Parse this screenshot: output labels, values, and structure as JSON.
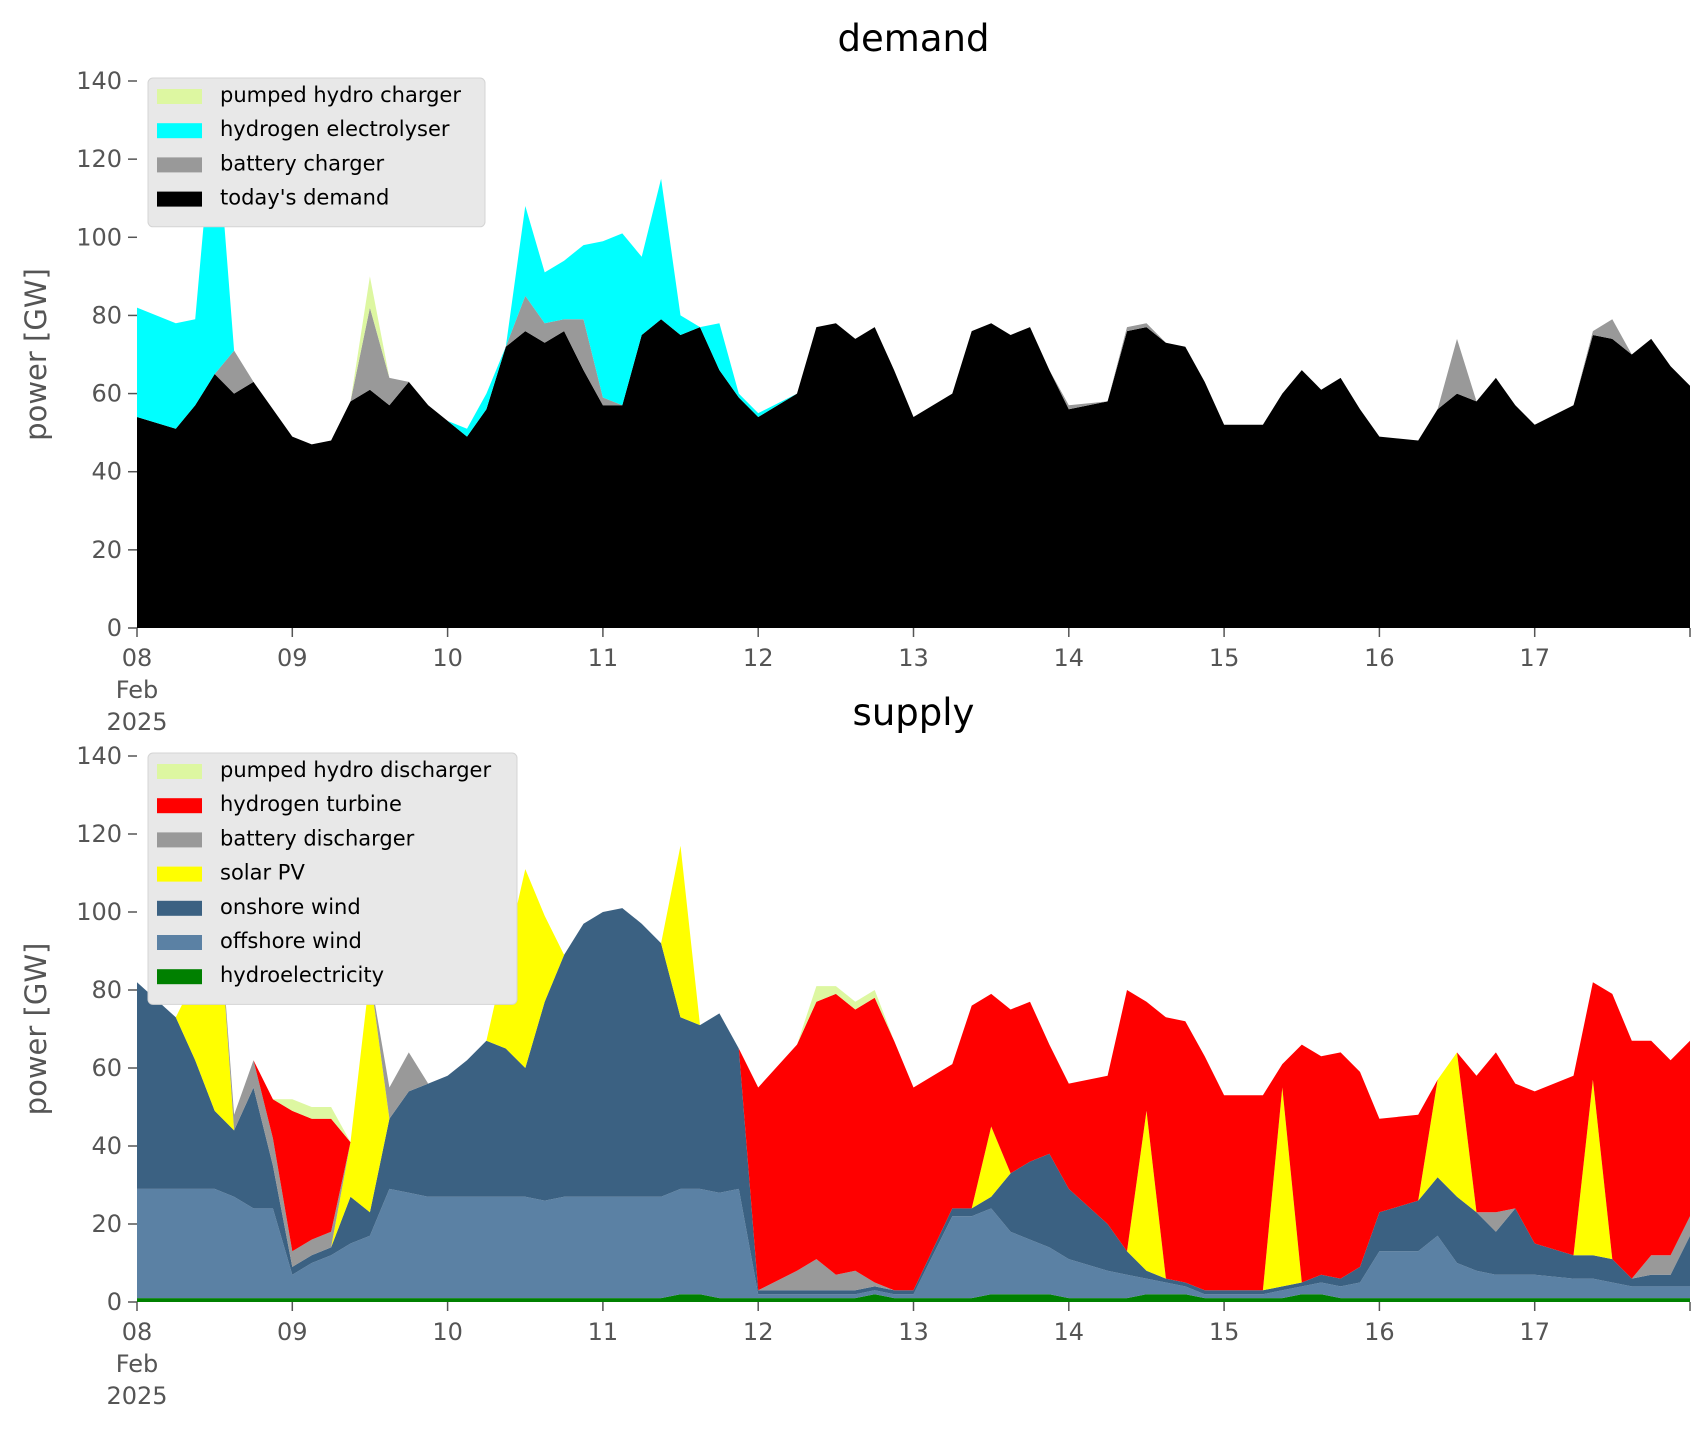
{
  "chart_data": [
    {
      "type": "area",
      "stacked": true,
      "title": "demand",
      "ylabel": "power [GW]",
      "xlabel": "",
      "xlim": [
        "2025-02-08T00:00",
        "2025-02-18T00:00"
      ],
      "ylim": [
        0,
        140
      ],
      "yticks": [
        0,
        20,
        40,
        60,
        80,
        100,
        120,
        140
      ],
      "xtick_labels": [
        "08\nFeb\n2025",
        "09",
        "10",
        "11",
        "12",
        "13",
        "14",
        "15",
        "16",
        "17"
      ],
      "grid": false,
      "legend_position": "upper-left",
      "x": [
        "2025-02-08T00:00",
        "2025-02-08T06:00",
        "2025-02-08T09:00",
        "2025-02-08T12:00",
        "2025-02-08T15:00",
        "2025-02-08T18:00",
        "2025-02-08T21:00",
        "2025-02-09T00:00",
        "2025-02-09T03:00",
        "2025-02-09T06:00",
        "2025-02-09T09:00",
        "2025-02-09T12:00",
        "2025-02-09T15:00",
        "2025-02-09T18:00",
        "2025-02-09T21:00",
        "2025-02-10T00:00",
        "2025-02-10T03:00",
        "2025-02-10T06:00",
        "2025-02-10T09:00",
        "2025-02-10T12:00",
        "2025-02-10T15:00",
        "2025-02-10T18:00",
        "2025-02-10T21:00",
        "2025-02-11T00:00",
        "2025-02-11T03:00",
        "2025-02-11T06:00",
        "2025-02-11T09:00",
        "2025-02-11T12:00",
        "2025-02-11T15:00",
        "2025-02-11T18:00",
        "2025-02-11T21:00",
        "2025-02-12T00:00",
        "2025-02-12T06:00",
        "2025-02-12T09:00",
        "2025-02-12T12:00",
        "2025-02-12T15:00",
        "2025-02-12T18:00",
        "2025-02-12T21:00",
        "2025-02-13T00:00",
        "2025-02-13T06:00",
        "2025-02-13T09:00",
        "2025-02-13T12:00",
        "2025-02-13T15:00",
        "2025-02-13T18:00",
        "2025-02-13T21:00",
        "2025-02-14T00:00",
        "2025-02-14T06:00",
        "2025-02-14T09:00",
        "2025-02-14T12:00",
        "2025-02-14T15:00",
        "2025-02-14T18:00",
        "2025-02-14T21:00",
        "2025-02-15T00:00",
        "2025-02-15T06:00",
        "2025-02-15T09:00",
        "2025-02-15T12:00",
        "2025-02-15T15:00",
        "2025-02-15T18:00",
        "2025-02-15T21:00",
        "2025-02-16T00:00",
        "2025-02-16T06:00",
        "2025-02-16T09:00",
        "2025-02-16T12:00",
        "2025-02-16T15:00",
        "2025-02-16T18:00",
        "2025-02-16T21:00",
        "2025-02-17T00:00",
        "2025-02-17T06:00",
        "2025-02-17T09:00",
        "2025-02-17T12:00",
        "2025-02-17T15:00",
        "2025-02-17T18:00",
        "2025-02-17T21:00",
        "2025-02-18T00:00"
      ],
      "series": [
        {
          "name": "today's demand",
          "color": "#000000",
          "values": [
            54,
            51,
            57,
            65,
            60,
            63,
            56,
            49,
            47,
            48,
            58,
            61,
            57,
            63,
            57,
            53,
            49,
            56,
            72,
            76,
            73,
            76,
            66,
            57,
            57,
            75,
            79,
            75,
            77,
            66,
            59,
            54,
            60,
            77,
            78,
            74,
            77,
            66,
            54,
            60,
            76,
            78,
            75,
            77,
            66,
            56,
            58,
            76,
            77,
            73,
            72,
            63,
            52,
            52,
            60,
            66,
            61,
            64,
            56,
            49,
            48,
            56,
            60,
            58,
            64,
            57,
            52,
            57,
            75,
            74,
            70,
            74,
            67,
            62
          ]
        },
        {
          "name": "battery charger",
          "color": "#999999",
          "values": [
            0,
            0,
            0,
            0,
            11,
            0,
            0,
            0,
            0,
            0,
            0,
            21,
            7,
            0,
            0,
            0,
            0,
            0,
            0,
            9,
            5,
            3,
            13,
            2,
            0,
            0,
            0,
            0,
            0,
            0,
            0,
            0,
            0,
            0,
            0,
            0,
            0,
            0,
            0,
            0,
            0,
            0,
            0,
            0,
            0,
            1,
            0,
            1,
            1,
            0,
            0,
            0,
            0,
            0,
            0,
            0,
            0,
            0,
            0,
            0,
            0,
            0,
            14,
            0,
            0,
            0,
            0,
            0,
            1,
            5,
            0,
            0,
            0,
            0
          ]
        },
        {
          "name": "hydrogen electrolyser",
          "color": "#00ffff",
          "values": [
            28,
            27,
            22,
            70,
            0,
            0,
            0,
            0,
            0,
            0,
            0,
            0,
            0,
            0,
            0,
            0,
            2,
            4,
            0,
            23,
            13,
            15,
            19,
            40,
            44,
            20,
            36,
            5,
            0,
            12,
            1,
            1,
            0,
            0,
            0,
            0,
            0,
            0,
            0,
            0,
            0,
            0,
            0,
            0,
            0,
            0,
            0,
            0,
            0,
            0,
            0,
            0,
            0,
            0,
            0,
            0,
            0,
            0,
            0,
            0,
            0,
            0,
            0,
            0,
            0,
            0,
            0,
            0,
            0,
            0,
            0,
            0,
            0,
            0
          ]
        },
        {
          "name": "pumped hydro charger",
          "color": "#ddf7a1",
          "values": [
            0,
            0,
            0,
            0,
            0,
            0,
            0,
            0,
            0,
            0,
            0,
            8,
            0,
            0,
            0,
            0,
            0,
            0,
            0,
            0,
            0,
            0,
            0,
            0,
            0,
            0,
            0,
            0,
            0,
            0,
            0,
            0,
            0,
            0,
            0,
            0,
            0,
            0,
            0,
            0,
            0,
            0,
            0,
            0,
            0,
            0,
            0,
            0,
            0,
            0,
            0,
            0,
            0,
            0,
            0,
            0,
            0,
            0,
            0,
            0,
            0,
            0,
            0,
            0,
            0,
            0,
            0,
            0,
            0,
            0,
            0,
            0,
            0,
            0
          ]
        }
      ]
    },
    {
      "type": "area",
      "stacked": true,
      "title": "supply",
      "ylabel": "power [GW]",
      "xlabel": "",
      "xlim": [
        "2025-02-08T00:00",
        "2025-02-18T00:00"
      ],
      "ylim": [
        0,
        140
      ],
      "yticks": [
        0,
        20,
        40,
        60,
        80,
        100,
        120,
        140
      ],
      "xtick_labels": [
        "08\nFeb\n2025",
        "09",
        "10",
        "11",
        "12",
        "13",
        "14",
        "15",
        "16",
        "17"
      ],
      "grid": false,
      "legend_position": "upper-left",
      "x": [
        "2025-02-08T00:00",
        "2025-02-08T06:00",
        "2025-02-08T09:00",
        "2025-02-08T12:00",
        "2025-02-08T15:00",
        "2025-02-08T18:00",
        "2025-02-08T21:00",
        "2025-02-09T00:00",
        "2025-02-09T03:00",
        "2025-02-09T06:00",
        "2025-02-09T09:00",
        "2025-02-09T12:00",
        "2025-02-09T15:00",
        "2025-02-09T18:00",
        "2025-02-09T21:00",
        "2025-02-10T00:00",
        "2025-02-10T03:00",
        "2025-02-10T06:00",
        "2025-02-10T09:00",
        "2025-02-10T12:00",
        "2025-02-10T15:00",
        "2025-02-10T18:00",
        "2025-02-10T21:00",
        "2025-02-11T00:00",
        "2025-02-11T03:00",
        "2025-02-11T06:00",
        "2025-02-11T09:00",
        "2025-02-11T12:00",
        "2025-02-11T15:00",
        "2025-02-11T18:00",
        "2025-02-11T21:00",
        "2025-02-12T00:00",
        "2025-02-12T06:00",
        "2025-02-12T09:00",
        "2025-02-12T12:00",
        "2025-02-12T15:00",
        "2025-02-12T18:00",
        "2025-02-12T21:00",
        "2025-02-13T00:00",
        "2025-02-13T06:00",
        "2025-02-13T09:00",
        "2025-02-13T12:00",
        "2025-02-13T15:00",
        "2025-02-13T18:00",
        "2025-02-13T21:00",
        "2025-02-14T00:00",
        "2025-02-14T06:00",
        "2025-02-14T09:00",
        "2025-02-14T12:00",
        "2025-02-14T15:00",
        "2025-02-14T18:00",
        "2025-02-14T21:00",
        "2025-02-15T00:00",
        "2025-02-15T06:00",
        "2025-02-15T09:00",
        "2025-02-15T12:00",
        "2025-02-15T15:00",
        "2025-02-15T18:00",
        "2025-02-15T21:00",
        "2025-02-16T00:00",
        "2025-02-16T06:00",
        "2025-02-16T09:00",
        "2025-02-16T12:00",
        "2025-02-16T15:00",
        "2025-02-16T18:00",
        "2025-02-16T21:00",
        "2025-02-17T00:00",
        "2025-02-17T06:00",
        "2025-02-17T09:00",
        "2025-02-17T12:00",
        "2025-02-17T15:00",
        "2025-02-17T18:00",
        "2025-02-17T21:00",
        "2025-02-18T00:00"
      ],
      "series": [
        {
          "name": "hydroelectricity",
          "color": "#008000",
          "values": [
            1,
            1,
            1,
            1,
            1,
            1,
            1,
            1,
            1,
            1,
            1,
            1,
            1,
            1,
            1,
            1,
            1,
            1,
            1,
            1,
            1,
            1,
            1,
            1,
            1,
            1,
            1,
            2,
            2,
            1,
            1,
            1,
            1,
            1,
            1,
            1,
            2,
            1,
            1,
            1,
            1,
            2,
            2,
            2,
            2,
            1,
            1,
            1,
            2,
            2,
            2,
            1,
            1,
            1,
            1,
            2,
            2,
            1,
            1,
            1,
            1,
            1,
            1,
            1,
            1,
            1,
            1,
            1,
            1,
            1,
            1,
            1,
            1,
            1
          ]
        },
        {
          "name": "offshore wind",
          "color": "#5b81a4",
          "values": [
            28,
            28,
            28,
            28,
            26,
            23,
            23,
            6,
            9,
            11,
            14,
            16,
            28,
            27,
            26,
            26,
            26,
            26,
            26,
            26,
            25,
            26,
            26,
            26,
            26,
            26,
            26,
            27,
            27,
            27,
            28,
            1,
            1,
            1,
            1,
            1,
            1,
            1,
            1,
            21,
            21,
            22,
            16,
            14,
            12,
            10,
            7,
            6,
            4,
            3,
            2,
            1,
            1,
            1,
            2,
            2,
            3,
            3,
            4,
            12,
            12,
            16,
            9,
            7,
            6,
            6,
            6,
            5,
            5,
            4,
            3,
            3,
            3,
            3
          ]
        },
        {
          "name": "onshore wind",
          "color": "#3b6182",
          "values": [
            53,
            44,
            33,
            20,
            17,
            31,
            11,
            2,
            2,
            2,
            12,
            6,
            18,
            26,
            29,
            31,
            35,
            40,
            38,
            33,
            51,
            62,
            70,
            73,
            74,
            70,
            65,
            44,
            42,
            46,
            36,
            1,
            1,
            1,
            1,
            1,
            1,
            1,
            1,
            2,
            2,
            3,
            15,
            20,
            24,
            18,
            12,
            6,
            2,
            1,
            1,
            1,
            1,
            1,
            1,
            1,
            2,
            2,
            4,
            10,
            13,
            15,
            17,
            15,
            11,
            17,
            8,
            6,
            6,
            6,
            2,
            3,
            3,
            13
          ]
        },
        {
          "name": "solar PV",
          "color": "#ffff00",
          "values": [
            0,
            0,
            21,
            66,
            0,
            0,
            0,
            0,
            0,
            0,
            14,
            61,
            0,
            0,
            0,
            0,
            0,
            0,
            24,
            51,
            22,
            0,
            0,
            0,
            0,
            0,
            0,
            44,
            0,
            0,
            0,
            0,
            0,
            0,
            0,
            0,
            0,
            0,
            0,
            0,
            0,
            18,
            0,
            0,
            0,
            0,
            0,
            0,
            41,
            0,
            0,
            0,
            0,
            0,
            51,
            0,
            0,
            0,
            0,
            0,
            0,
            25,
            37,
            0,
            0,
            0,
            0,
            0,
            45,
            0,
            0,
            0,
            0,
            0
          ]
        },
        {
          "name": "battery discharger",
          "color": "#999999",
          "values": [
            0,
            0,
            0,
            0,
            4,
            7,
            7,
            4,
            4,
            4,
            0,
            0,
            8,
            10,
            0,
            0,
            0,
            0,
            0,
            0,
            0,
            0,
            0,
            0,
            0,
            0,
            0,
            0,
            0,
            0,
            0,
            0,
            5,
            8,
            4,
            5,
            1,
            0,
            0,
            0,
            0,
            0,
            0,
            0,
            0,
            0,
            0,
            0,
            0,
            0,
            0,
            0,
            0,
            0,
            0,
            0,
            0,
            0,
            0,
            0,
            0,
            0,
            0,
            0,
            5,
            0,
            0,
            0,
            0,
            0,
            0,
            5,
            5,
            5
          ]
        },
        {
          "name": "hydrogen turbine",
          "color": "#ff0000",
          "values": [
            0,
            0,
            0,
            0,
            0,
            0,
            10,
            36,
            31,
            29,
            0,
            0,
            0,
            0,
            0,
            0,
            0,
            0,
            0,
            0,
            0,
            0,
            0,
            0,
            0,
            0,
            0,
            0,
            0,
            0,
            0,
            52,
            58,
            66,
            72,
            67,
            73,
            64,
            52,
            37,
            52,
            34,
            42,
            41,
            28,
            27,
            38,
            67,
            28,
            67,
            67,
            60,
            50,
            50,
            6,
            61,
            56,
            58,
            50,
            24,
            22,
            0,
            0,
            35,
            41,
            32,
            39,
            46,
            25,
            68,
            61,
            55,
            50,
            45
          ]
        },
        {
          "name": "pumped hydro discharger",
          "color": "#ddf7a1",
          "values": [
            0,
            0,
            0,
            0,
            0,
            0,
            0,
            3,
            3,
            3,
            0,
            0,
            0,
            0,
            0,
            0,
            0,
            0,
            0,
            0,
            0,
            0,
            0,
            0,
            0,
            0,
            0,
            0,
            0,
            0,
            0,
            0,
            0,
            4,
            2,
            2,
            2,
            0,
            0,
            0,
            0,
            0,
            0,
            0,
            0,
            0,
            0,
            0,
            0,
            0,
            0,
            0,
            0,
            0,
            0,
            0,
            0,
            0,
            0,
            0,
            0,
            0,
            0,
            0,
            0,
            0,
            0,
            0,
            0,
            0,
            0,
            0,
            0,
            0
          ]
        }
      ]
    }
  ]
}
